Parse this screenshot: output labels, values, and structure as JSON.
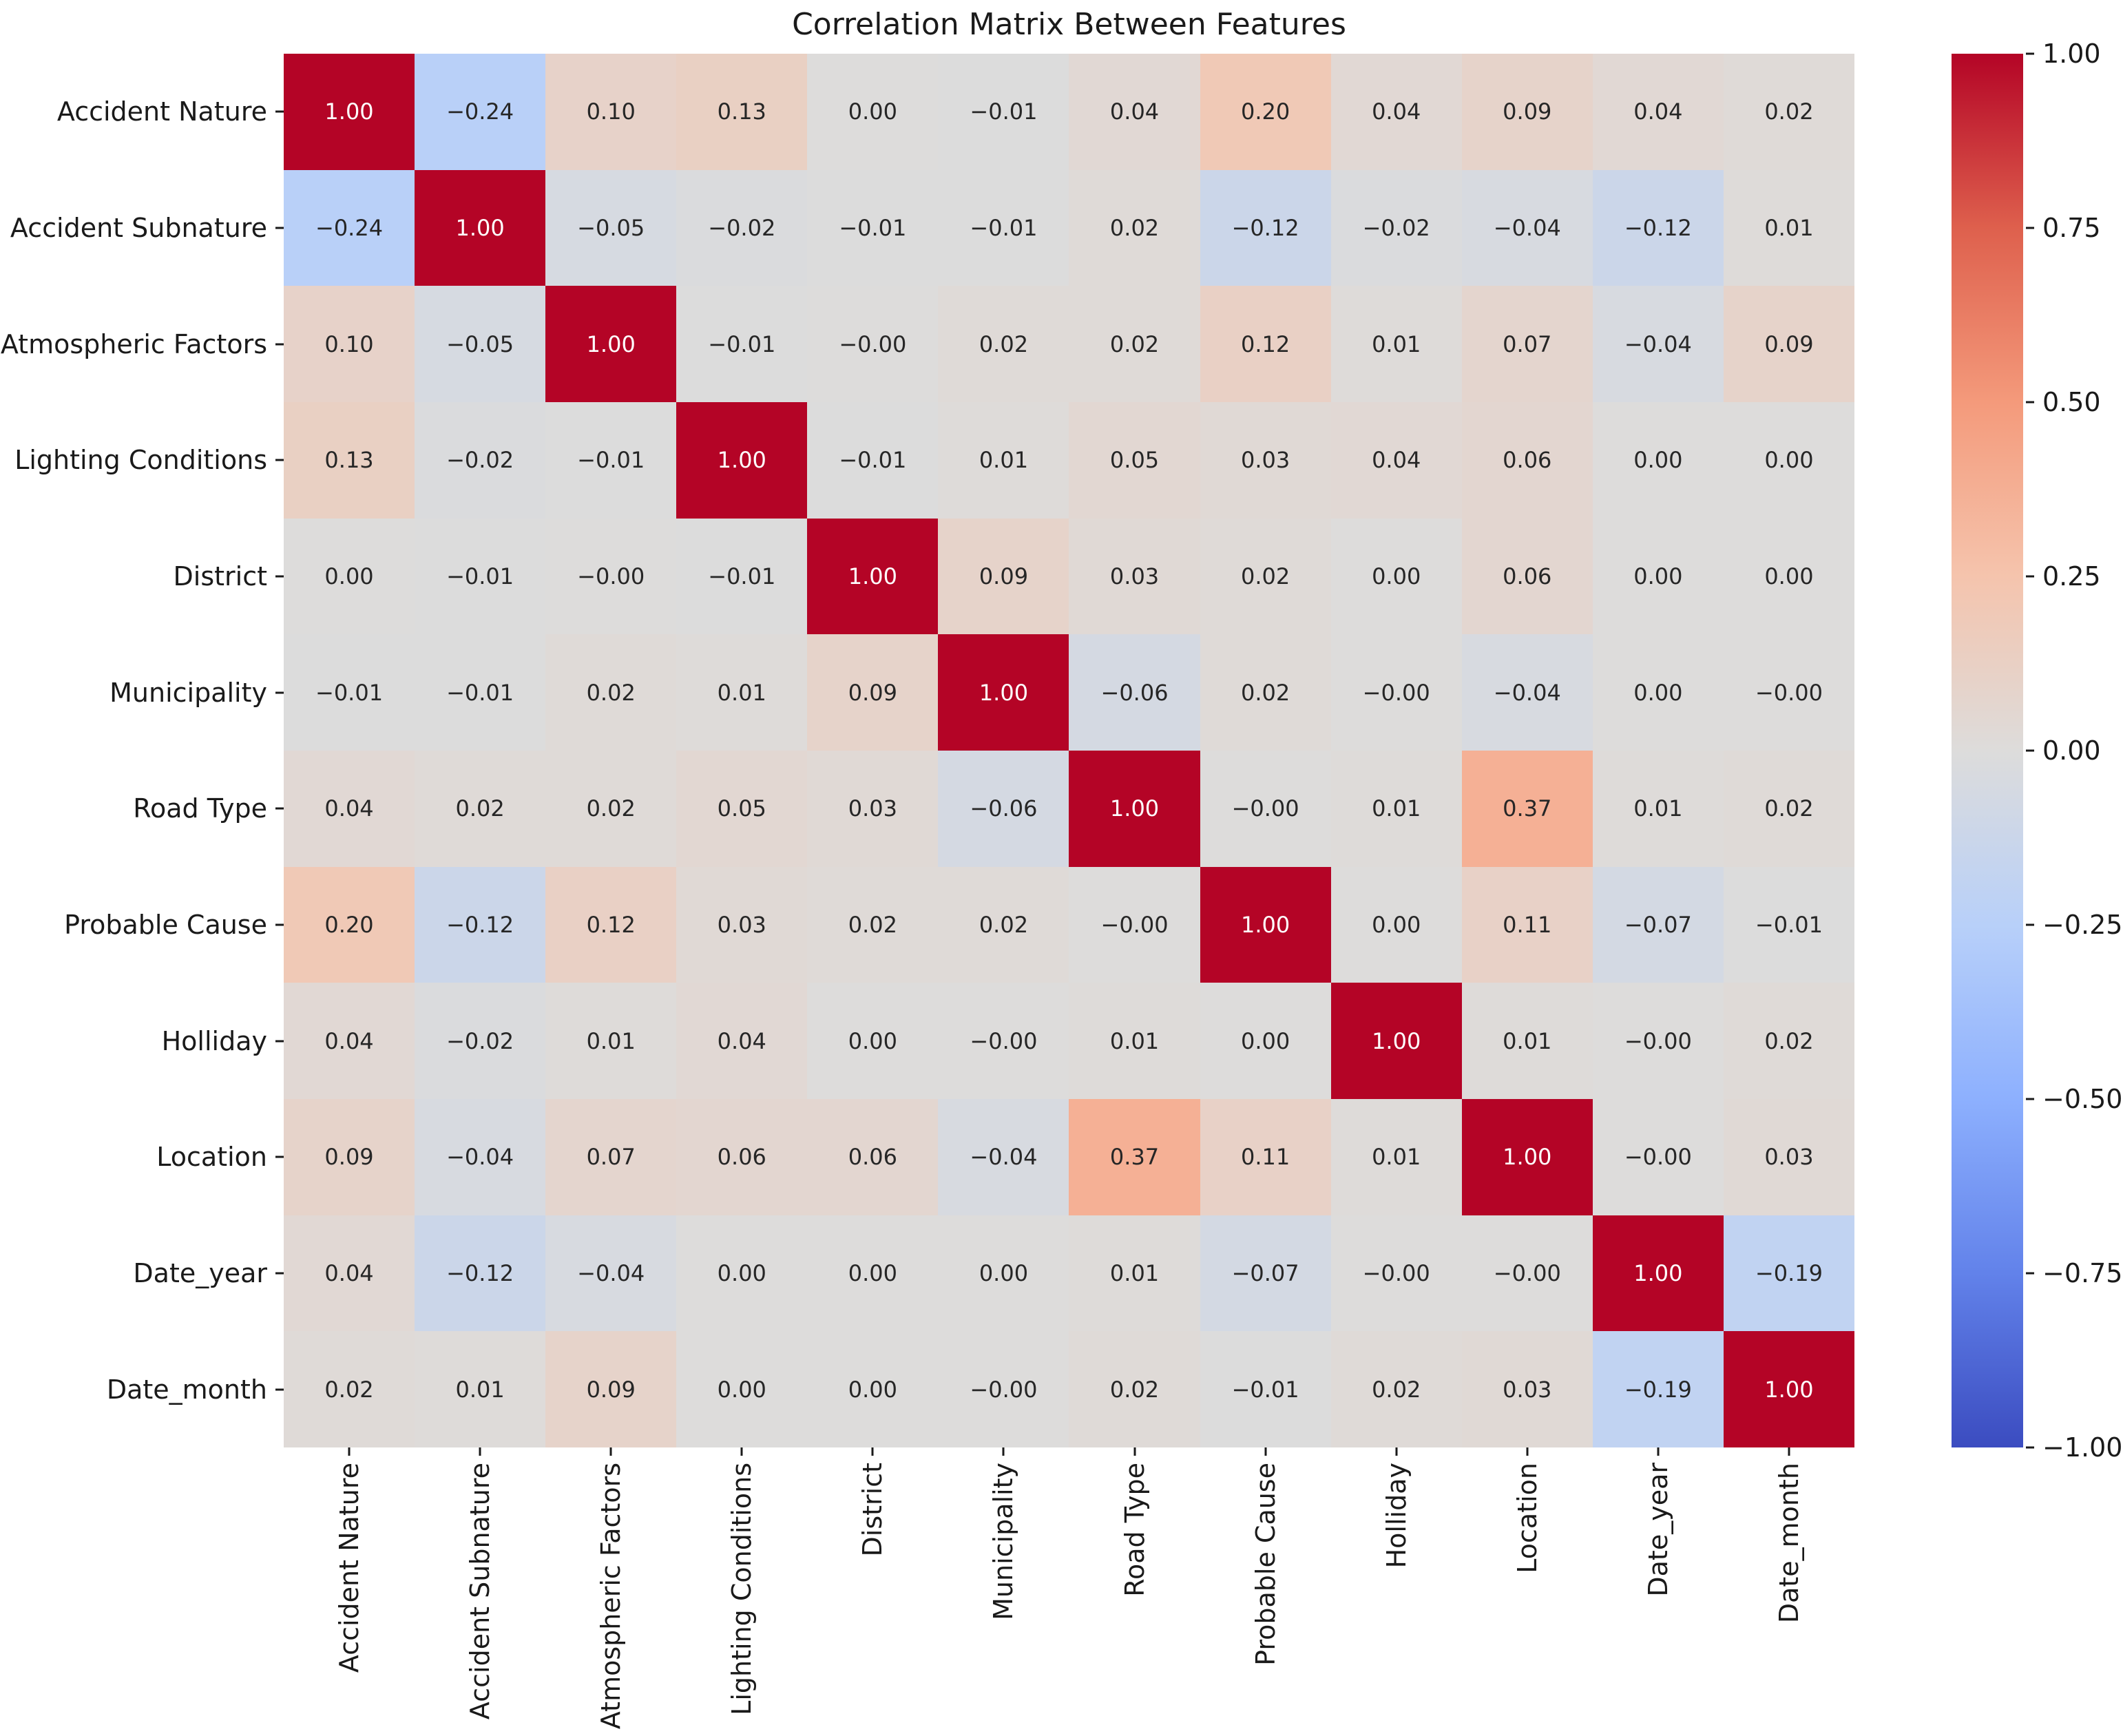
{
  "figure": {
    "background": "#ffffff",
    "text_color": "#1a1a1a"
  },
  "chart_data": {
    "type": "heatmap",
    "title": "Correlation Matrix Between Features",
    "x_labels": [
      "Accident Nature",
      "Accident Subnature",
      "Atmospheric Factors",
      "Lighting Conditions",
      "District",
      "Municipality",
      "Road Type",
      "Probable Cause",
      "Holliday",
      "Location",
      "Date_year",
      "Date_month"
    ],
    "y_labels": [
      "Accident Nature",
      "Accident Subnature",
      "Atmospheric Factors",
      "Lighting Conditions",
      "District",
      "Municipality",
      "Road Type",
      "Probable Cause",
      "Holliday",
      "Location",
      "Date_year",
      "Date_month"
    ],
    "matrix": [
      [
        "1.00",
        "-0.24",
        "0.10",
        "0.13",
        "0.00",
        "-0.01",
        "0.04",
        "0.20",
        "0.04",
        "0.09",
        "0.04",
        "0.02"
      ],
      [
        "-0.24",
        "1.00",
        "-0.05",
        "-0.02",
        "-0.01",
        "-0.01",
        "0.02",
        "-0.12",
        "-0.02",
        "-0.04",
        "-0.12",
        "0.01"
      ],
      [
        "0.10",
        "-0.05",
        "1.00",
        "-0.01",
        "-0.00",
        "0.02",
        "0.02",
        "0.12",
        "0.01",
        "0.07",
        "-0.04",
        "0.09"
      ],
      [
        "0.13",
        "-0.02",
        "-0.01",
        "1.00",
        "-0.01",
        "0.01",
        "0.05",
        "0.03",
        "0.04",
        "0.06",
        "0.00",
        "0.00"
      ],
      [
        "0.00",
        "-0.01",
        "-0.00",
        "-0.01",
        "1.00",
        "0.09",
        "0.03",
        "0.02",
        "0.00",
        "0.06",
        "0.00",
        "0.00"
      ],
      [
        "-0.01",
        "-0.01",
        "0.02",
        "0.01",
        "0.09",
        "1.00",
        "-0.06",
        "0.02",
        "-0.00",
        "-0.04",
        "0.00",
        "-0.00"
      ],
      [
        "0.04",
        "0.02",
        "0.02",
        "0.05",
        "0.03",
        "-0.06",
        "1.00",
        "-0.00",
        "0.01",
        "0.37",
        "0.01",
        "0.02"
      ],
      [
        "0.20",
        "-0.12",
        "0.12",
        "0.03",
        "0.02",
        "0.02",
        "-0.00",
        "1.00",
        "0.00",
        "0.11",
        "-0.07",
        "-0.01"
      ],
      [
        "0.04",
        "-0.02",
        "0.01",
        "0.04",
        "0.00",
        "-0.00",
        "0.01",
        "0.00",
        "1.00",
        "0.01",
        "-0.00",
        "0.02"
      ],
      [
        "0.09",
        "-0.04",
        "0.07",
        "0.06",
        "0.06",
        "-0.04",
        "0.37",
        "0.11",
        "0.01",
        "1.00",
        "-0.00",
        "0.03"
      ],
      [
        "0.04",
        "-0.12",
        "-0.04",
        "0.00",
        "0.00",
        "0.00",
        "0.01",
        "-0.07",
        "-0.00",
        "-0.00",
        "1.00",
        "-0.19"
      ],
      [
        "0.02",
        "0.01",
        "0.09",
        "0.00",
        "0.00",
        "-0.00",
        "0.02",
        "-0.01",
        "0.02",
        "0.03",
        "-0.19",
        "1.00"
      ]
    ],
    "vmin": -1,
    "vmax": 1,
    "grid": false,
    "legend_position": "right-colorbar",
    "colorbar": {
      "ticks": [
        "1.00",
        "0.75",
        "0.50",
        "0.25",
        "0.00",
        "−0.25",
        "−0.50",
        "−0.75",
        "−1.00"
      ],
      "colormap_name": "coolwarm",
      "anchors": [
        {
          "t": 0.0,
          "color": "#3b4cc0"
        },
        {
          "t": 0.125,
          "color": "#6282ea"
        },
        {
          "t": 0.25,
          "color": "#8db0fe"
        },
        {
          "t": 0.375,
          "color": "#b8d0f9"
        },
        {
          "t": 0.5,
          "color": "#dddcdb"
        },
        {
          "t": 0.625,
          "color": "#f5c4ad"
        },
        {
          "t": 0.75,
          "color": "#f49a7b"
        },
        {
          "t": 0.875,
          "color": "#de604d"
        },
        {
          "t": 1.0,
          "color": "#b40426"
        }
      ]
    },
    "annotation_colors": {
      "light_bg": "#262626",
      "dark_bg": "#ffffff"
    }
  }
}
